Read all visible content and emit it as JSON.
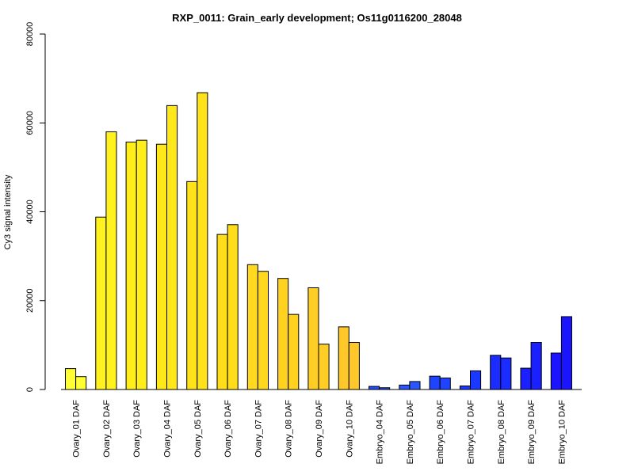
{
  "chart_data": {
    "type": "bar",
    "title": "RXP_0011: Grain_early development; Os11g0116200_28048",
    "xlabel": "",
    "ylabel": "Cy3 signal intensity",
    "ylim": [
      0,
      80000
    ],
    "yticks": [
      0,
      20000,
      40000,
      60000,
      80000
    ],
    "grid": false,
    "legend": "none",
    "categories": [
      "Ovary_01 DAF",
      "Ovary_02 DAF",
      "Ovary_03 DAF",
      "Ovary_04 DAF",
      "Ovary_05 DAF",
      "Ovary_06 DAF",
      "Ovary_07 DAF",
      "Ovary_08 DAF",
      "Ovary_09 DAF",
      "Ovary_10 DAF",
      "Embryo_04 DAF",
      "Embryo_05 DAF",
      "Embryo_06 DAF",
      "Embryo_07 DAF",
      "Embryo_08 DAF",
      "Embryo_09 DAF",
      "Embryo_10 DAF"
    ],
    "series": [
      {
        "values": [
          4700,
          38800,
          55700,
          55200,
          46800,
          34900,
          28100,
          25000,
          22900,
          14100,
          700,
          1000,
          3000,
          800,
          7700,
          4800,
          8200
        ]
      },
      {
        "values": [
          2900,
          58000,
          56100,
          63900,
          66800,
          37100,
          26600,
          16900,
          10200,
          10600,
          400,
          1800,
          2600,
          4200,
          7100,
          10600,
          16400
        ]
      }
    ],
    "group_colors": [
      "#ffff33",
      "#fff21f",
      "#ffee1a",
      "#ffe81a",
      "#ffe21a",
      "#ffdd1a",
      "#ffd81f",
      "#ffd21f",
      "#ffcd24",
      "#ffc82a",
      "#1f4cff",
      "#2a55ff",
      "#1f44ff",
      "#1a38ff",
      "#1a2cff",
      "#1a20ff",
      "#1a14ff"
    ]
  }
}
